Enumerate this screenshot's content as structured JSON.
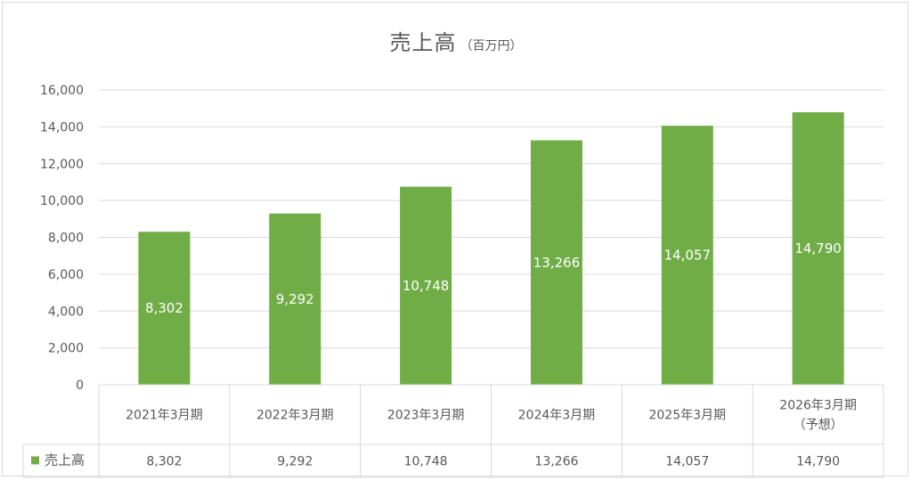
{
  "chart_data": {
    "type": "bar",
    "title": "売上高",
    "subtitle": "（百万円）",
    "categories": [
      [
        "2021年3月期"
      ],
      [
        "2022年3月期"
      ],
      [
        "2023年3月期"
      ],
      [
        "2024年3月期"
      ],
      [
        "2025年3月期"
      ],
      [
        "2026年3月期",
        "（予想）"
      ]
    ],
    "series": [
      {
        "name": "売上高",
        "values": [
          8302,
          9292,
          10748,
          13266,
          14057,
          14790
        ],
        "labels": [
          "8,302",
          "9,292",
          "10,748",
          "13,266",
          "14,057",
          "14,790"
        ],
        "color": "#70ad47"
      }
    ],
    "yticks": [
      "0",
      "2,000",
      "4,000",
      "6,000",
      "8,000",
      "10,000",
      "12,000",
      "14,000",
      "16,000"
    ],
    "ylim": [
      0,
      16000
    ],
    "grid": true,
    "legend": "data-table-left",
    "data_table": true
  }
}
